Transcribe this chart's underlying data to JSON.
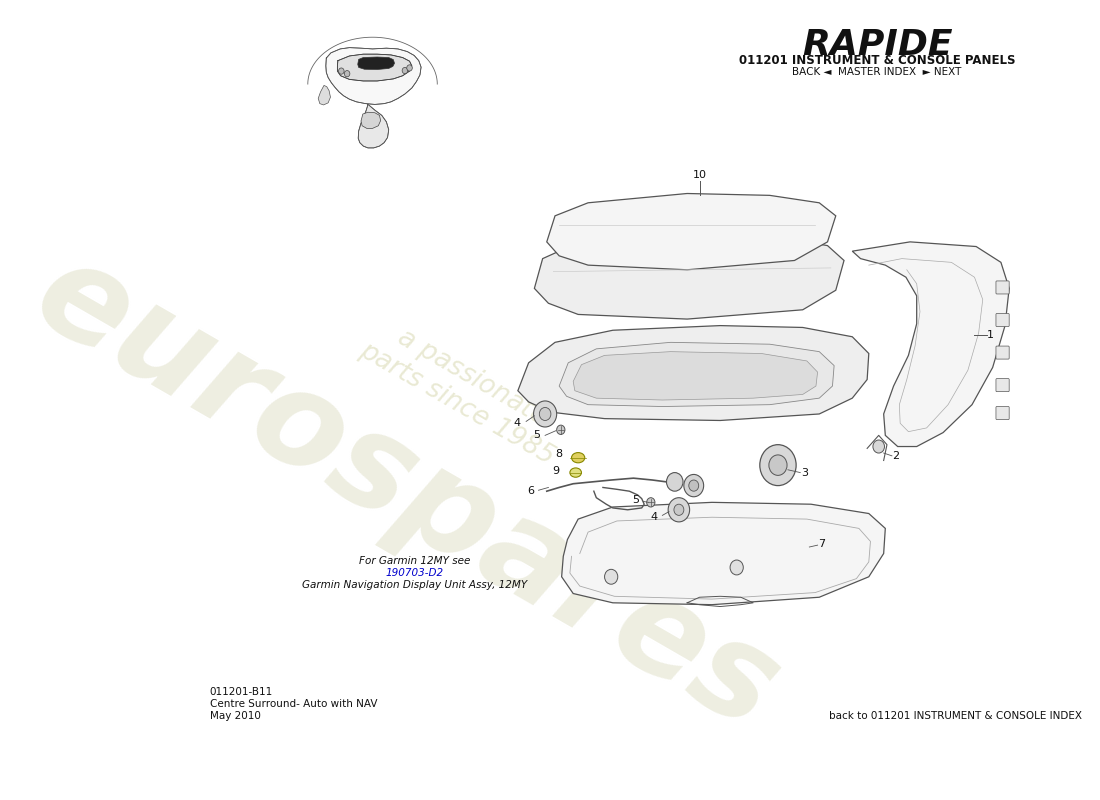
{
  "title": "RAPIDE",
  "subtitle": "011201 INSTRUMENT & CONSOLE PANELS",
  "nav_text": "BACK ◄  MASTER INDEX  ► NEXT",
  "bottom_left_code": "011201-B11",
  "bottom_left_line1": "Centre Surround- Auto with NAV",
  "bottom_left_line2": "May 2010",
  "bottom_right": "back to 011201 INSTRUMENT & CONSOLE INDEX",
  "garmin_note1": "For Garmin 12MY see",
  "garmin_note2": "190703-D2",
  "garmin_note3": "Garmin Navigation Display Unit Assy, 12MY",
  "bg_color": "#ffffff",
  "text_color": "#000000",
  "ec": "#555555",
  "lw": 0.9
}
